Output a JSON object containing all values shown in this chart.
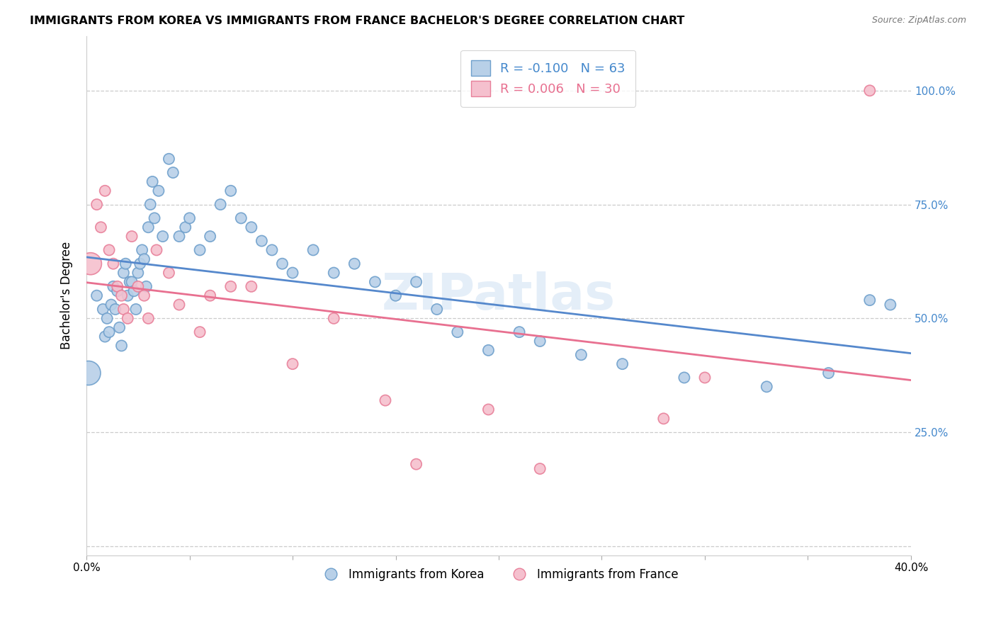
{
  "title": "IMMIGRANTS FROM KOREA VS IMMIGRANTS FROM FRANCE BACHELOR'S DEGREE CORRELATION CHART",
  "source": "Source: ZipAtlas.com",
  "ylabel": "Bachelor's Degree",
  "xlim": [
    0.0,
    0.4
  ],
  "ylim": [
    -0.02,
    1.12
  ],
  "korea_color": "#b8d0e8",
  "korea_edge_color": "#6fa0cc",
  "france_color": "#f5c0ce",
  "france_edge_color": "#e8809a",
  "line_korea_color": "#5588cc",
  "line_france_color": "#e87090",
  "legend_R_korea": "-0.100",
  "legend_N_korea": "63",
  "legend_R_france": "0.006",
  "legend_N_france": "30",
  "watermark": "ZIPatlas",
  "korea_x": [
    0.001,
    0.005,
    0.008,
    0.009,
    0.01,
    0.011,
    0.012,
    0.013,
    0.014,
    0.015,
    0.016,
    0.017,
    0.018,
    0.019,
    0.02,
    0.021,
    0.022,
    0.023,
    0.024,
    0.025,
    0.026,
    0.027,
    0.028,
    0.029,
    0.03,
    0.031,
    0.032,
    0.033,
    0.035,
    0.037,
    0.04,
    0.042,
    0.045,
    0.048,
    0.05,
    0.055,
    0.06,
    0.065,
    0.07,
    0.075,
    0.08,
    0.085,
    0.09,
    0.095,
    0.1,
    0.11,
    0.12,
    0.13,
    0.14,
    0.15,
    0.16,
    0.17,
    0.18,
    0.195,
    0.21,
    0.22,
    0.24,
    0.26,
    0.29,
    0.33,
    0.36,
    0.38,
    0.39
  ],
  "korea_y": [
    0.38,
    0.55,
    0.52,
    0.46,
    0.5,
    0.47,
    0.53,
    0.57,
    0.52,
    0.56,
    0.48,
    0.44,
    0.6,
    0.62,
    0.55,
    0.58,
    0.58,
    0.56,
    0.52,
    0.6,
    0.62,
    0.65,
    0.63,
    0.57,
    0.7,
    0.75,
    0.8,
    0.72,
    0.78,
    0.68,
    0.85,
    0.82,
    0.68,
    0.7,
    0.72,
    0.65,
    0.68,
    0.75,
    0.78,
    0.72,
    0.7,
    0.67,
    0.65,
    0.62,
    0.6,
    0.65,
    0.6,
    0.62,
    0.58,
    0.55,
    0.58,
    0.52,
    0.47,
    0.43,
    0.47,
    0.45,
    0.42,
    0.4,
    0.37,
    0.35,
    0.38,
    0.54,
    0.53
  ],
  "france_x": [
    0.002,
    0.005,
    0.007,
    0.009,
    0.011,
    0.013,
    0.015,
    0.017,
    0.018,
    0.02,
    0.022,
    0.025,
    0.028,
    0.03,
    0.034,
    0.04,
    0.045,
    0.055,
    0.06,
    0.07,
    0.08,
    0.1,
    0.12,
    0.145,
    0.16,
    0.195,
    0.22,
    0.28,
    0.3,
    0.38
  ],
  "france_y": [
    0.62,
    0.75,
    0.7,
    0.78,
    0.65,
    0.62,
    0.57,
    0.55,
    0.52,
    0.5,
    0.68,
    0.57,
    0.55,
    0.5,
    0.65,
    0.6,
    0.53,
    0.47,
    0.55,
    0.57,
    0.57,
    0.4,
    0.5,
    0.32,
    0.18,
    0.3,
    0.17,
    0.28,
    0.37,
    1.0
  ],
  "korea_sizes": [
    600,
    120,
    120,
    120,
    120,
    120,
    120,
    120,
    120,
    120,
    120,
    120,
    120,
    120,
    120,
    120,
    120,
    120,
    120,
    120,
    120,
    120,
    120,
    120,
    120,
    120,
    120,
    120,
    120,
    120,
    120,
    120,
    120,
    120,
    120,
    120,
    120,
    120,
    120,
    120,
    120,
    120,
    120,
    120,
    120,
    120,
    120,
    120,
    120,
    120,
    120,
    120,
    120,
    120,
    120,
    120,
    120,
    120,
    120,
    120,
    120,
    120,
    120
  ],
  "france_sizes": [
    500,
    120,
    120,
    120,
    120,
    120,
    120,
    120,
    120,
    120,
    120,
    120,
    120,
    120,
    120,
    120,
    120,
    120,
    120,
    120,
    120,
    120,
    120,
    120,
    120,
    120,
    120,
    120,
    120,
    120
  ]
}
